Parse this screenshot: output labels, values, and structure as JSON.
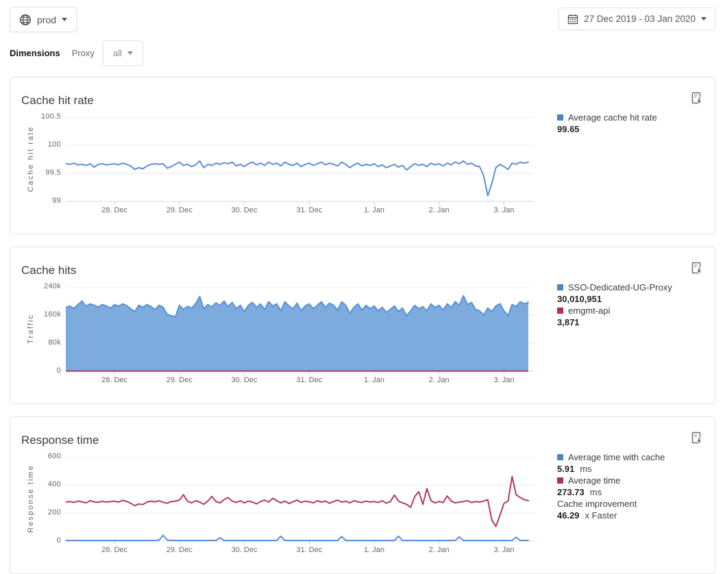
{
  "toolbar": {
    "environment": "prod",
    "date_range": "27 Dec 2019 - 03 Jan 2020",
    "dimensions_label": "Dimensions",
    "dimension_name": "Proxy",
    "dimension_value": "all"
  },
  "colors": {
    "blue_line": "#5b90d6",
    "blue_fill": "#7dabde",
    "blue_swatch": "#4d82c4",
    "maroon_line": "#b23a66",
    "maroon_swatch": "#b02d5e",
    "grid": "#e8e8e8",
    "axis_line": "#d9d9d9",
    "axis_text": "#666666"
  },
  "chart_data": [
    {
      "type": "line",
      "title": "Cache hit rate",
      "ylabel": "Cache hit rate",
      "ylim": [
        99,
        100.5
      ],
      "yticks": [
        {
          "v": 99,
          "label": "99"
        },
        {
          "v": 99.5,
          "label": "99.5"
        },
        {
          "v": 100,
          "label": "100"
        },
        {
          "v": 100.5,
          "label": "100.5"
        }
      ],
      "x_tick_labels": [
        "28. Dec",
        "29. Dec",
        "30. Dec",
        "31. Dec",
        "1. Jan",
        "2. Jan",
        "3. Jan"
      ],
      "x_tick_indices": [
        12,
        28,
        44,
        60,
        76,
        92,
        108
      ],
      "n_points": 115,
      "series": [
        {
          "name": "Average cache hit rate",
          "color": "#5b90d6",
          "fill": null,
          "values": [
            99.67,
            99.66,
            99.68,
            99.65,
            99.66,
            99.64,
            99.67,
            99.61,
            99.66,
            99.67,
            99.65,
            99.66,
            99.67,
            99.65,
            99.68,
            99.66,
            99.63,
            99.57,
            99.6,
            99.58,
            99.63,
            99.66,
            99.67,
            99.66,
            99.67,
            99.59,
            99.62,
            99.66,
            99.7,
            99.64,
            99.66,
            99.62,
            99.65,
            99.72,
            99.6,
            99.66,
            99.64,
            99.68,
            99.66,
            99.69,
            99.67,
            99.7,
            99.63,
            99.66,
            99.62,
            99.67,
            99.7,
            99.65,
            99.68,
            99.64,
            99.7,
            99.66,
            99.68,
            99.63,
            99.7,
            99.66,
            99.64,
            99.68,
            99.62,
            99.66,
            99.68,
            99.64,
            99.67,
            99.7,
            99.65,
            99.68,
            99.66,
            99.63,
            99.7,
            99.66,
            99.6,
            99.65,
            99.68,
            99.63,
            99.66,
            99.64,
            99.67,
            99.62,
            99.65,
            99.6,
            99.63,
            99.66,
            99.61,
            99.64,
            99.56,
            99.62,
            99.67,
            99.64,
            99.66,
            99.62,
            99.68,
            99.65,
            99.67,
            99.63,
            99.68,
            99.65,
            99.7,
            99.67,
            99.72,
            99.66,
            99.68,
            99.63,
            99.62,
            99.45,
            99.1,
            99.32,
            99.6,
            99.66,
            99.62,
            99.57,
            99.68,
            99.66,
            99.7,
            99.68,
            99.7
          ]
        }
      ],
      "legend": [
        {
          "swatch": "#4d82c4",
          "label": "Average cache hit rate",
          "value": "99.65",
          "suffix": ""
        }
      ]
    },
    {
      "type": "area",
      "title": "Cache hits",
      "ylabel": "Traffic",
      "unit": "k",
      "ylim": [
        0,
        240
      ],
      "yticks": [
        {
          "v": 0,
          "label": "0"
        },
        {
          "v": 80,
          "label": "80k"
        },
        {
          "v": 160,
          "label": "160k"
        },
        {
          "v": 240,
          "label": "240k"
        }
      ],
      "x_tick_labels": [
        "28. Dec",
        "29. Dec",
        "30. Dec",
        "31. Dec",
        "1. Jan",
        "2. Jan",
        "3. Jan"
      ],
      "x_tick_indices": [
        12,
        28,
        44,
        60,
        76,
        92,
        108
      ],
      "n_points": 115,
      "series": [
        {
          "name": "SSO-Dedicated-UG-Proxy",
          "color": "#5b90d6",
          "fill": "#7dabde",
          "values": [
            181,
            186,
            179,
            190,
            200,
            185,
            192,
            188,
            183,
            190,
            186,
            180,
            190,
            185,
            192,
            187,
            178,
            170,
            188,
            182,
            190,
            184,
            176,
            188,
            182,
            162,
            158,
            155,
            188,
            176,
            185,
            180,
            192,
            213,
            178,
            190,
            183,
            195,
            187,
            200,
            184,
            196,
            178,
            188,
            170,
            188,
            196,
            182,
            192,
            176,
            198,
            186,
            192,
            172,
            198,
            186,
            178,
            194,
            172,
            186,
            192,
            178,
            188,
            198,
            182,
            194,
            188,
            174,
            198,
            188,
            165,
            182,
            192,
            174,
            188,
            178,
            186,
            172,
            182,
            168,
            176,
            186,
            170,
            180,
            158,
            172,
            188,
            178,
            184,
            172,
            192,
            182,
            188,
            174,
            192,
            182,
            198,
            188,
            215,
            190,
            196,
            176,
            172,
            160,
            180,
            170,
            186,
            192,
            172,
            158,
            190,
            184,
            198,
            192,
            196
          ]
        },
        {
          "name": "emgmt-api",
          "color": "#b23a66",
          "constant_value": 0.4
        }
      ],
      "legend": [
        {
          "swatch": "#4d82c4",
          "label": "SSO-Dedicated-UG-Proxy",
          "value": "30,010,951",
          "suffix": ""
        },
        {
          "swatch": "#b02d5e",
          "label": "emgmt-api",
          "value": "3,871",
          "suffix": ""
        }
      ]
    },
    {
      "type": "line",
      "title": "Response time",
      "ylabel": "Response time",
      "ylim": [
        0,
        600
      ],
      "yticks": [
        {
          "v": 0,
          "label": "0"
        },
        {
          "v": 200,
          "label": "200"
        },
        {
          "v": 400,
          "label": "400"
        },
        {
          "v": 600,
          "label": "600"
        }
      ],
      "x_tick_labels": [
        "28. Dec",
        "29. Dec",
        "30. Dec",
        "31. Dec",
        "1. Jan",
        "2. Jan",
        "3. Jan"
      ],
      "x_tick_indices": [
        12,
        28,
        44,
        60,
        76,
        92,
        108
      ],
      "n_points": 115,
      "series": [
        {
          "name": "Average time",
          "color": "#b23a66",
          "fill": null,
          "values": [
            278,
            282,
            275,
            285,
            280,
            272,
            288,
            280,
            276,
            284,
            278,
            282,
            285,
            278,
            290,
            283,
            270,
            252,
            265,
            260,
            278,
            285,
            280,
            288,
            276,
            270,
            282,
            285,
            292,
            330,
            285,
            272,
            288,
            278,
            262,
            285,
            318,
            282,
            272,
            295,
            310,
            285,
            275,
            288,
            272,
            285,
            278,
            265,
            282,
            292,
            278,
            305,
            288,
            272,
            285,
            268,
            280,
            292,
            275,
            285,
            280,
            272,
            288,
            278,
            285,
            270,
            282,
            292,
            278,
            285,
            272,
            288,
            280,
            275,
            285,
            278,
            282,
            275,
            288,
            270,
            282,
            328,
            285,
            272,
            262,
            240,
            318,
            352,
            262,
            375,
            288,
            272,
            282,
            275,
            322,
            285,
            272,
            278,
            282,
            288,
            275,
            282,
            278,
            285,
            295,
            150,
            105,
            185,
            270,
            285,
            460,
            330,
            310,
            295,
            288
          ]
        },
        {
          "name": "Average time with cache",
          "color": "#5b90d6",
          "fill": null,
          "values": [
            5,
            5,
            5,
            5,
            5,
            5,
            5,
            5,
            5,
            5,
            5,
            5,
            5,
            5,
            5,
            5,
            5,
            5,
            5,
            5,
            5,
            5,
            5,
            8,
            42,
            8,
            5,
            5,
            5,
            5,
            5,
            5,
            5,
            5,
            5,
            5,
            5,
            5,
            25,
            5,
            5,
            5,
            5,
            5,
            5,
            5,
            5,
            5,
            5,
            5,
            5,
            5,
            5,
            35,
            5,
            5,
            5,
            5,
            5,
            5,
            5,
            5,
            5,
            5,
            5,
            5,
            5,
            5,
            33,
            5,
            5,
            5,
            5,
            5,
            5,
            5,
            5,
            5,
            5,
            5,
            5,
            5,
            35,
            5,
            5,
            5,
            5,
            5,
            5,
            5,
            5,
            5,
            5,
            5,
            5,
            5,
            5,
            30,
            5,
            5,
            5,
            5,
            5,
            5,
            5,
            5,
            5,
            5,
            5,
            5,
            5,
            28,
            5,
            5,
            5
          ]
        }
      ],
      "legend": [
        {
          "swatch": "#4d82c4",
          "label": "Average time with cache",
          "value": "5.91",
          "suffix": "ms"
        },
        {
          "swatch": "#b02d5e",
          "label": "Average time",
          "value": "273.73",
          "suffix": "ms"
        },
        {
          "label": "Cache improvement",
          "value": "46.29",
          "suffix": "x Faster"
        }
      ]
    }
  ]
}
